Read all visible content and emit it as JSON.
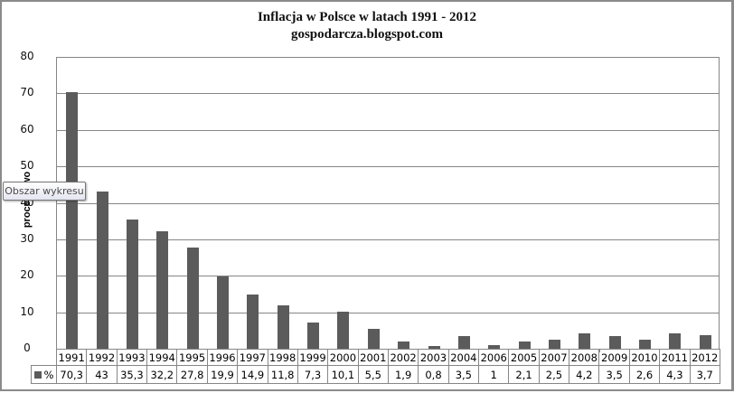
{
  "chart_data": {
    "type": "bar",
    "title": "Inflacja  w  Polsce w latach 1991 - 2012",
    "subtitle": "gospodarcza.blogspot.com",
    "xlabel": "",
    "ylabel": "procentowo",
    "ylim": [
      0,
      80
    ],
    "yticks": [
      0,
      10,
      20,
      30,
      40,
      50,
      60,
      70,
      80
    ],
    "grid": true,
    "legend": {
      "position": "data-table",
      "entries": [
        "%"
      ]
    },
    "categories": [
      "1991",
      "1992",
      "1993",
      "1994",
      "1995",
      "1996",
      "1997",
      "1998",
      "1999",
      "2000",
      "2001",
      "2002",
      "2003",
      "2004",
      "2006",
      "2005",
      "2007",
      "2008",
      "2009",
      "2010",
      "2011",
      "2012"
    ],
    "series": [
      {
        "name": "%",
        "color": "#5b5b5b",
        "values": [
          70.3,
          43,
          35.3,
          32.2,
          27.8,
          19.9,
          14.9,
          11.8,
          7.3,
          10.1,
          5.5,
          1.9,
          0.8,
          3.5,
          1,
          2.1,
          2.5,
          4.2,
          3.5,
          2.6,
          4.3,
          3.7
        ],
        "labels": [
          "70,3",
          "43",
          "35,3",
          "32,2",
          "27,8",
          "19,9",
          "14,9",
          "11,8",
          "7,3",
          "10,1",
          "5,5",
          "1,9",
          "0,8",
          "3,5",
          "1",
          "2,1",
          "2,5",
          "4,2",
          "3,5",
          "2,6",
          "4,3",
          "3,7"
        ]
      }
    ]
  },
  "header": {
    "title": "Inflacja  w  Polsce w latach 1991 - 2012",
    "subtitle": "gospodarcza.blogspot.com"
  },
  "axis": {
    "ylabel": "procentowo",
    "ytick_labels": [
      "80",
      "70",
      "60",
      "50",
      "40",
      "30",
      "20",
      "10",
      "0"
    ]
  },
  "table": {
    "legend_label": "%"
  },
  "tooltip": {
    "text": "Obszar wykresu"
  },
  "colors": {
    "bar": "#5b5b5b",
    "grid": "#868686"
  }
}
